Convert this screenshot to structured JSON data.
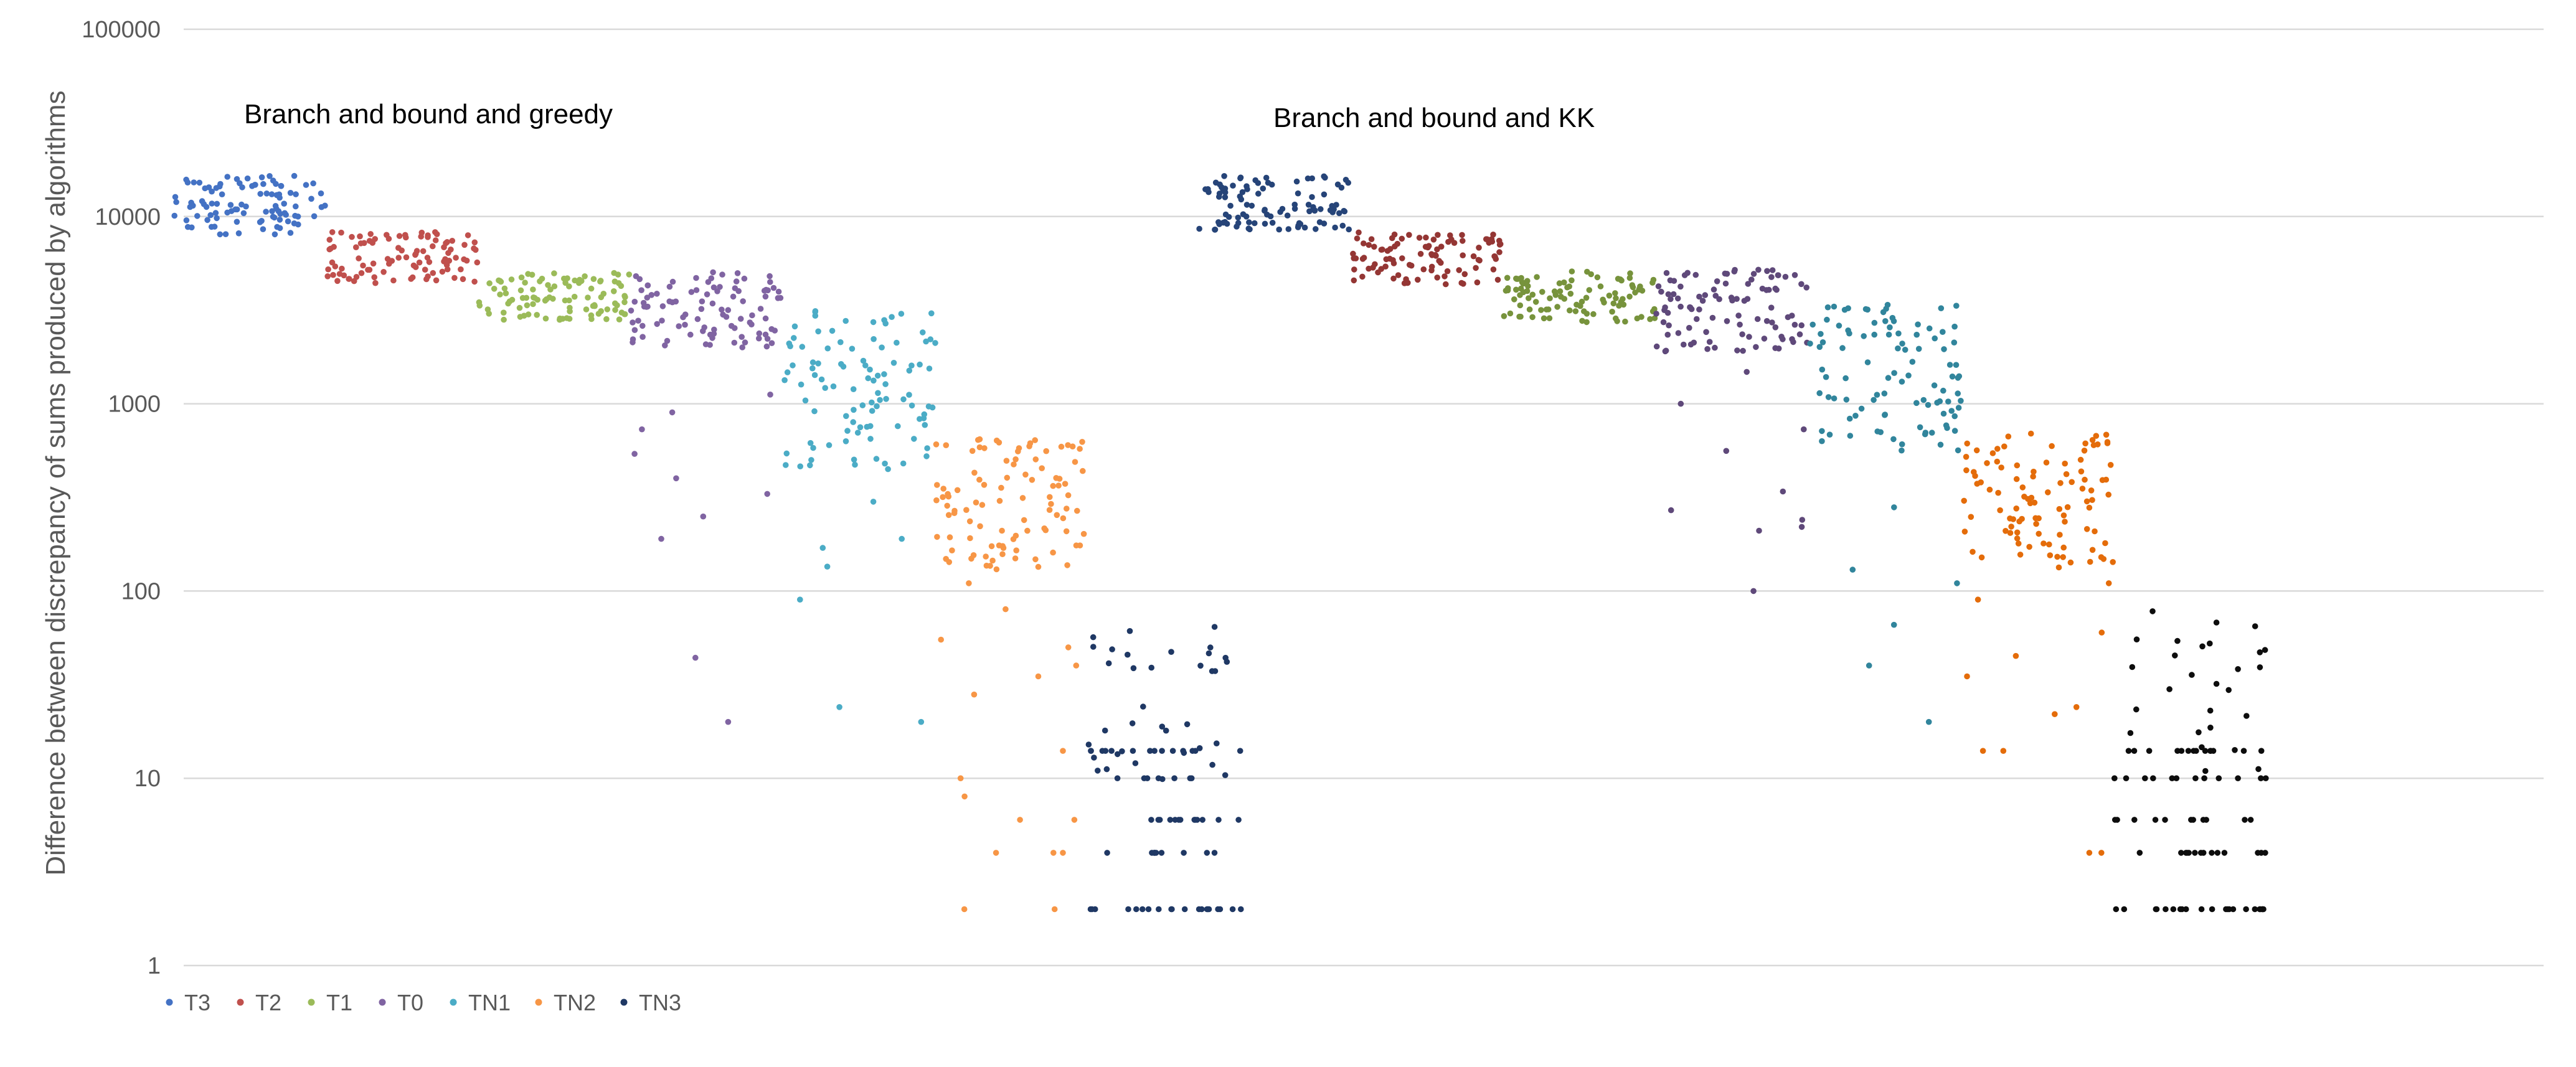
{
  "chart_data": {
    "type": "scatter",
    "yscale": "log",
    "ylim": [
      1,
      100000
    ],
    "yticks": [
      {
        "value": 1,
        "label": "1"
      },
      {
        "value": 10,
        "label": "10"
      },
      {
        "value": 100,
        "label": "100"
      },
      {
        "value": 1000,
        "label": "1000"
      },
      {
        "value": 10000,
        "label": "10000"
      },
      {
        "value": 100000,
        "label": "100000"
      }
    ],
    "ylabel": "Difference between discrepancy of sums produced by algorithms",
    "xlabel": "",
    "xticks_shown": false,
    "grid": "horizontal",
    "legend_position": "bottom-left",
    "annotations": [
      {
        "text": "Branch and bound and greedy",
        "group": 0
      },
      {
        "text": "Branch and bound and KK",
        "group": 1
      }
    ],
    "groups": 2,
    "points_per_series": 100,
    "series": [
      {
        "name": "T3",
        "group_colors": [
          "#4472C4",
          "#264478"
        ],
        "bands": [
          [
            8000,
            16500
          ],
          [
            8500,
            16500
          ]
        ],
        "outliers": [
          [],
          []
        ]
      },
      {
        "name": "T2",
        "group_colors": [
          "#C0504D",
          "#943634"
        ],
        "bands": [
          [
            4400,
            8300
          ],
          [
            4300,
            8300
          ]
        ],
        "outliers": [
          [],
          []
        ]
      },
      {
        "name": "T1",
        "group_colors": [
          "#9BBB59",
          "#77933C"
        ],
        "bands": [
          [
            2800,
            5000
          ],
          [
            2700,
            5100
          ]
        ],
        "outliers": [
          [],
          []
        ]
      },
      {
        "name": "T0",
        "group_colors": [
          "#8064A2",
          "#5F497A"
        ],
        "bands": [
          [
            2000,
            5200
          ],
          [
            1900,
            5200
          ]
        ],
        "outliers": [
          [
            1120,
            900,
            730,
            540,
            400,
            330,
            250,
            190,
            44,
            20
          ],
          [
            1480,
            1000,
            730,
            560,
            340,
            270,
            240,
            220,
            210,
            100
          ]
        ]
      },
      {
        "name": "TN1",
        "group_colors": [
          "#4BACC6",
          "#31859C"
        ],
        "bands": [
          [
            430,
            3300
          ],
          [
            560,
            3400
          ]
        ],
        "outliers": [
          [
            300,
            190,
            170,
            135,
            90,
            24,
            20
          ],
          [
            280,
            130,
            110,
            66,
            40,
            20
          ]
        ]
      },
      {
        "name": "TN2",
        "group_colors": [
          "#F79646",
          "#E46C0A"
        ],
        "bands": [
          [
            130,
            680
          ],
          [
            130,
            720
          ]
        ],
        "outliers": [
          [
            110,
            80,
            55,
            50,
            40,
            35,
            28,
            14,
            10,
            8,
            6,
            6,
            4,
            4,
            4,
            2,
            2
          ],
          [
            110,
            90,
            60,
            45,
            35,
            24,
            22,
            14,
            14,
            4,
            4
          ]
        ]
      },
      {
        "name": "TN3",
        "group_colors": [
          "#1F3864",
          "#0D0D0D"
        ],
        "bands": [
          [
            2,
            65
          ],
          [
            2,
            78
          ]
        ],
        "outliers": [
          [],
          []
        ]
      }
    ]
  }
}
